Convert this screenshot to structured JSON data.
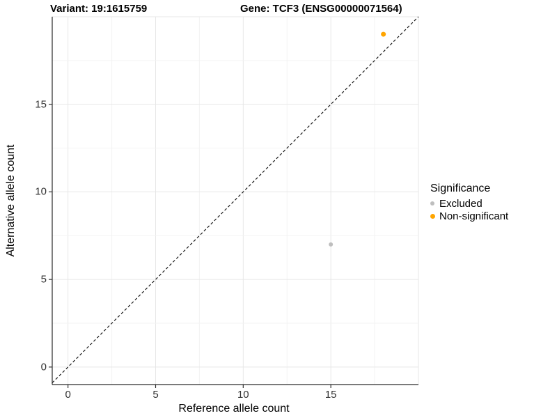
{
  "header": {
    "variant_title": "Variant: 19:1615759",
    "gene_title": "Gene: TCF3 (ENSG00000071564)"
  },
  "chart_data": {
    "type": "scatter",
    "title": "Variant: 19:1615759 / Gene: TCF3 (ENSG00000071564)",
    "xlabel": "Reference allele count",
    "ylabel": "Alternative allele count",
    "xlim": [
      -0.9,
      20
    ],
    "ylim": [
      -1,
      20
    ],
    "x_ticks": [
      0,
      5,
      10,
      15
    ],
    "y_ticks": [
      0,
      5,
      10,
      15
    ],
    "grid": "major+minor",
    "legend": {
      "title": "Significance",
      "position": "right"
    },
    "identity_line": {
      "slope": 1,
      "intercept": 0,
      "style": "dashed",
      "color": "#1a1a1a"
    },
    "series": [
      {
        "name": "Excluded",
        "color": "#BEBEBE",
        "marker_px": 6,
        "points": [
          [
            15,
            7
          ]
        ]
      },
      {
        "name": "Non-significant",
        "color": "#FFA500",
        "marker_px": 7,
        "points": [
          [
            18,
            19
          ]
        ]
      }
    ],
    "colors": {
      "grid_major": "#e7e7e7",
      "grid_minor": "#f3f3f3",
      "axis_line": "#2a2a2a",
      "tick_mark": "#333333"
    }
  }
}
